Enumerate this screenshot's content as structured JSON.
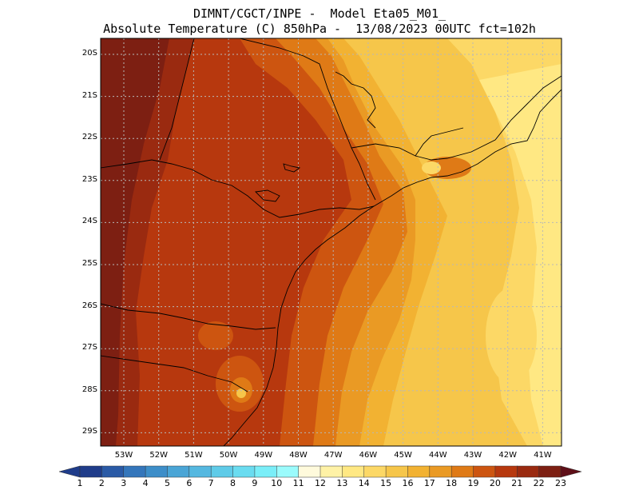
{
  "title": {
    "line1": "DIMNT/CGCT/INPE -  Model Eta05_M01_",
    "line2": "Absolute Temperature (C) 850hPa -  13/08/2023 00UTC fct=102h"
  },
  "lat_labels": [
    "20S",
    "21S",
    "22S",
    "23S",
    "24S",
    "25S",
    "26S",
    "27S",
    "28S",
    "29S"
  ],
  "lon_labels": [
    "53W",
    "52W",
    "51W",
    "50W",
    "49W",
    "48W",
    "47W",
    "46W",
    "45W",
    "44W",
    "43W",
    "42W",
    "41W"
  ],
  "colorbar": {
    "labels": [
      "1",
      "2",
      "3",
      "4",
      "5",
      "6",
      "7",
      "8",
      "9",
      "10",
      "11",
      "12",
      "13",
      "14",
      "15",
      "16",
      "17",
      "18",
      "19",
      "20",
      "21",
      "22",
      "23"
    ],
    "colors": [
      "#1f3c8a",
      "#1f3c8a",
      "#2a5aa6",
      "#3476bb",
      "#3d8ec9",
      "#4aa5d6",
      "#55b8e0",
      "#5fcbe8",
      "#6adcf0",
      "#7aeef8",
      "#9bfbfc",
      "#fffadc",
      "#fff2a6",
      "#ffe883",
      "#fcd866",
      "#f6c64a",
      "#f2b232",
      "#ea9a24",
      "#df7a16",
      "#cd5510",
      "#b7380e",
      "#9a2a10",
      "#7d1f12",
      "#5e0f18"
    ]
  },
  "fields": {
    "colors": {
      "c22": "#7d1f12",
      "c21": "#9a2a10",
      "c20": "#b7380e",
      "c19": "#cd5510",
      "c18": "#df7a16",
      "c17": "#ea9a24",
      "c16": "#f2b232",
      "c15": "#f6c64a",
      "c14": "#fcd866",
      "c13": "#ffe883",
      "c12": "#fff2a6"
    }
  }
}
